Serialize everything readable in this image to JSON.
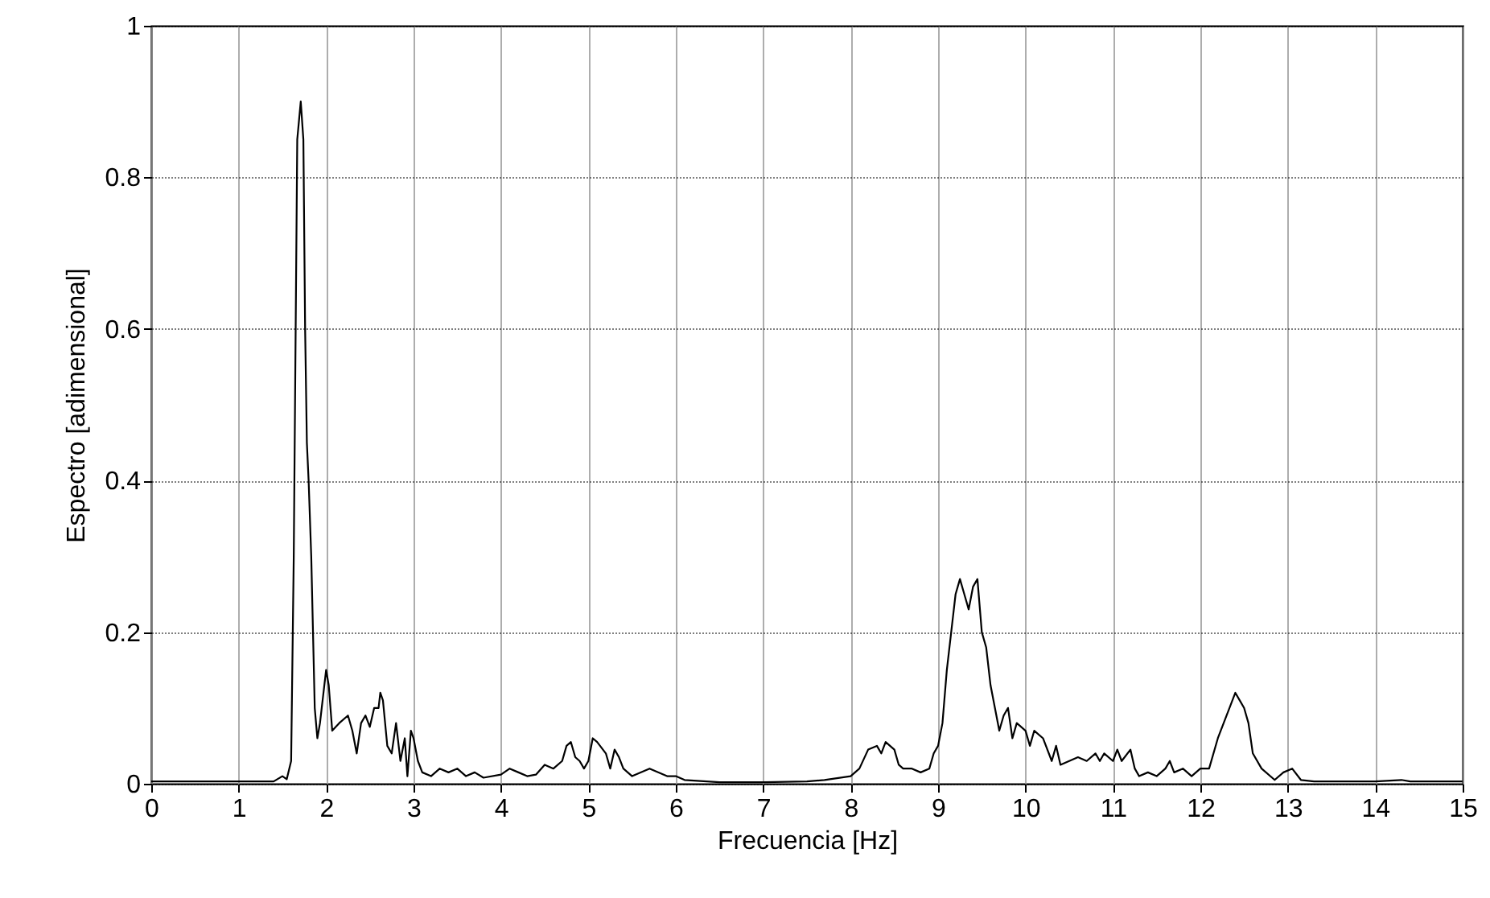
{
  "chart_data": {
    "type": "line",
    "xlabel": "Frecuencia [Hz]",
    "ylabel": "Espectro [adimensional]",
    "xlim": [
      0,
      15
    ],
    "xticks": [
      0,
      1,
      2,
      3,
      4,
      5,
      6,
      7,
      8,
      9,
      10,
      11,
      12,
      13,
      14,
      15
    ],
    "ylim": [
      0,
      1
    ],
    "yticks": [
      0,
      0.2,
      0.4,
      0.6,
      0.8,
      1
    ],
    "grid": true,
    "marker": "none",
    "line_style": "solid",
    "series": [
      {
        "color": "#000000",
        "x": [
          0,
          1,
          1.4,
          1.5,
          1.55,
          1.6,
          1.63,
          1.67,
          1.71,
          1.74,
          1.76,
          1.78,
          1.8,
          1.83,
          1.87,
          1.9,
          1.93,
          1.97,
          2.0,
          2.03,
          2.07,
          2.15,
          2.25,
          2.3,
          2.35,
          2.4,
          2.45,
          2.5,
          2.55,
          2.6,
          2.62,
          2.65,
          2.7,
          2.75,
          2.8,
          2.85,
          2.9,
          2.93,
          2.97,
          3.0,
          3.05,
          3.1,
          3.2,
          3.3,
          3.4,
          3.5,
          3.6,
          3.7,
          3.8,
          4.0,
          4.1,
          4.2,
          4.3,
          4.4,
          4.5,
          4.6,
          4.7,
          4.75,
          4.8,
          4.85,
          4.9,
          4.95,
          5.0,
          5.05,
          5.1,
          5.2,
          5.25,
          5.3,
          5.35,
          5.4,
          5.5,
          5.7,
          5.9,
          6.0,
          6.1,
          6.5,
          7,
          7.5,
          7.7,
          8.0,
          8.1,
          8.2,
          8.3,
          8.35,
          8.4,
          8.5,
          8.55,
          8.6,
          8.7,
          8.8,
          8.9,
          8.95,
          9.0,
          9.05,
          9.1,
          9.15,
          9.2,
          9.25,
          9.3,
          9.35,
          9.4,
          9.45,
          9.5,
          9.55,
          9.6,
          9.65,
          9.7,
          9.75,
          9.8,
          9.85,
          9.9,
          10.0,
          10.05,
          10.1,
          10.2,
          10.3,
          10.35,
          10.4,
          10.5,
          10.6,
          10.7,
          10.8,
          10.85,
          10.9,
          11.0,
          11.05,
          11.1,
          11.2,
          11.25,
          11.3,
          11.4,
          11.5,
          11.6,
          11.65,
          11.7,
          11.8,
          11.9,
          12.0,
          12.1,
          12.2,
          12.3,
          12.4,
          12.45,
          12.5,
          12.55,
          12.6,
          12.7,
          12.85,
          12.95,
          13.05,
          13.15,
          13.3,
          13.5,
          14.0,
          14.3,
          14.4,
          15
        ],
        "values": [
          0.003,
          0.003,
          0.003,
          0.01,
          0.006,
          0.03,
          0.3,
          0.85,
          0.9,
          0.85,
          0.6,
          0.45,
          0.4,
          0.3,
          0.1,
          0.06,
          0.08,
          0.12,
          0.15,
          0.13,
          0.07,
          0.08,
          0.09,
          0.07,
          0.04,
          0.08,
          0.09,
          0.075,
          0.1,
          0.1,
          0.12,
          0.11,
          0.05,
          0.04,
          0.08,
          0.03,
          0.06,
          0.01,
          0.07,
          0.06,
          0.03,
          0.015,
          0.01,
          0.02,
          0.015,
          0.02,
          0.01,
          0.015,
          0.008,
          0.012,
          0.02,
          0.015,
          0.01,
          0.012,
          0.025,
          0.02,
          0.03,
          0.05,
          0.055,
          0.035,
          0.03,
          0.02,
          0.03,
          0.06,
          0.055,
          0.04,
          0.02,
          0.045,
          0.035,
          0.02,
          0.01,
          0.02,
          0.01,
          0.01,
          0.005,
          0.002,
          0.002,
          0.003,
          0.005,
          0.01,
          0.02,
          0.045,
          0.05,
          0.04,
          0.055,
          0.045,
          0.025,
          0.02,
          0.02,
          0.015,
          0.02,
          0.04,
          0.05,
          0.08,
          0.15,
          0.2,
          0.25,
          0.27,
          0.25,
          0.23,
          0.26,
          0.27,
          0.2,
          0.18,
          0.13,
          0.1,
          0.07,
          0.09,
          0.1,
          0.06,
          0.08,
          0.07,
          0.05,
          0.07,
          0.06,
          0.03,
          0.05,
          0.025,
          0.03,
          0.035,
          0.03,
          0.04,
          0.03,
          0.04,
          0.03,
          0.045,
          0.03,
          0.045,
          0.02,
          0.01,
          0.015,
          0.01,
          0.02,
          0.03,
          0.015,
          0.02,
          0.01,
          0.02,
          0.02,
          0.06,
          0.09,
          0.12,
          0.11,
          0.1,
          0.08,
          0.04,
          0.02,
          0.005,
          0.015,
          0.02,
          0.005,
          0.003,
          0.003,
          0.003,
          0.005,
          0.003,
          0.003
        ]
      }
    ]
  }
}
